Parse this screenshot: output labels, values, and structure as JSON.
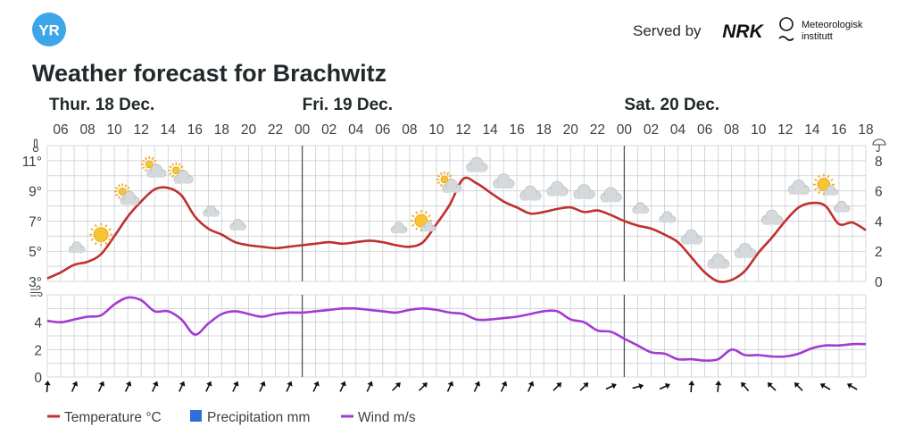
{
  "header": {
    "logo_text": "YR",
    "served_by": "Served by",
    "nrk_logo_text": "NRK",
    "met_line1": "Meteorologisk",
    "met_line2": "institutt",
    "title": "Weather forecast for Brachwitz"
  },
  "days": [
    {
      "label": "Thur. 18 Dec.",
      "hour": 5
    },
    {
      "label": "Fri. 19 Dec.",
      "hour": 24
    },
    {
      "label": "Sat. 20 Dec.",
      "hour": 48
    }
  ],
  "hour_labels": [
    "06",
    "08",
    "10",
    "12",
    "14",
    "16",
    "18",
    "20",
    "22",
    "00",
    "02",
    "04",
    "06",
    "08",
    "10",
    "12",
    "14",
    "16",
    "18",
    "20",
    "22",
    "00",
    "02",
    "04",
    "06",
    "08",
    "10",
    "12",
    "14",
    "16",
    "18"
  ],
  "legend": {
    "temperature": "Temperature °C",
    "precipitation": "Precipitation mm",
    "wind": "Wind m/s"
  },
  "colors": {
    "temperature": "#c0302d",
    "precipitation": "#2f6fd8",
    "wind": "#a23bd1",
    "grid": "#c9cdd0"
  },
  "chart_data": [
    {
      "type": "line",
      "name": "temperature-precipitation",
      "x_start_hour": 5,
      "x_end_hour": 66,
      "ylim_left": [
        3,
        12
      ],
      "left_ticks": [
        "3°",
        "5°",
        "7°",
        "9°",
        "11°"
      ],
      "ylim_right": [
        0,
        9
      ],
      "right_ticks": [
        "0",
        "2",
        "4",
        "6",
        "8"
      ],
      "series": [
        {
          "name": "Temperature °C",
          "x": [
            5,
            6,
            7,
            8,
            9,
            10,
            11,
            12,
            13,
            14,
            15,
            16,
            17,
            18,
            19,
            20,
            21,
            22,
            23,
            24,
            25,
            26,
            27,
            28,
            29,
            30,
            31,
            32,
            33,
            34,
            35,
            36,
            37,
            38,
            39,
            40,
            41,
            42,
            43,
            44,
            45,
            46,
            47,
            48,
            49,
            50,
            51,
            52,
            53,
            54,
            55,
            56,
            57,
            58,
            59,
            60,
            61,
            62,
            63,
            64,
            65,
            66
          ],
          "values": [
            3.2,
            3.6,
            4.1,
            4.3,
            4.8,
            6.0,
            7.3,
            8.3,
            9.1,
            9.2,
            8.7,
            7.3,
            6.5,
            6.1,
            5.6,
            5.4,
            5.3,
            5.2,
            5.3,
            5.4,
            5.5,
            5.6,
            5.5,
            5.6,
            5.7,
            5.6,
            5.4,
            5.3,
            5.6,
            6.8,
            8.1,
            9.8,
            9.5,
            8.9,
            8.3,
            7.9,
            7.5,
            7.6,
            7.8,
            7.9,
            7.6,
            7.7,
            7.4,
            7.0,
            6.7,
            6.5,
            6.1,
            5.6,
            4.6,
            3.6,
            3.0,
            3.1,
            3.7,
            4.9,
            5.9,
            7.0,
            7.9,
            8.2,
            8.0,
            6.8,
            6.9,
            6.4
          ]
        },
        {
          "name": "Precipitation mm",
          "values": []
        }
      ],
      "symbols": [
        {
          "hour": 7,
          "icon": "partly-cloudy-night-icon"
        },
        {
          "hour": 9,
          "icon": "sun-icon"
        },
        {
          "hour": 11,
          "icon": "partly-cloudy-day-icon"
        },
        {
          "hour": 13,
          "icon": "partly-cloudy-day-icon"
        },
        {
          "hour": 15,
          "icon": "partly-cloudy-day-icon"
        },
        {
          "hour": 17,
          "icon": "partly-cloudy-night-icon"
        },
        {
          "hour": 19,
          "icon": "partly-cloudy-night-icon"
        },
        {
          "hour": 21,
          "icon": "moon-icon"
        },
        {
          "hour": 23,
          "icon": "moon-icon"
        },
        {
          "hour": 25,
          "icon": "moon-icon"
        },
        {
          "hour": 27,
          "icon": "moon-icon"
        },
        {
          "hour": 29,
          "icon": "moon-icon"
        },
        {
          "hour": 31,
          "icon": "partly-cloudy-night-icon"
        },
        {
          "hour": 33,
          "icon": "sun-cloud-icon"
        },
        {
          "hour": 35,
          "icon": "partly-cloudy-day-icon"
        },
        {
          "hour": 37,
          "icon": "cloud-icon"
        },
        {
          "hour": 39,
          "icon": "cloud-icon"
        },
        {
          "hour": 41,
          "icon": "cloud-icon"
        },
        {
          "hour": 43,
          "icon": "cloud-icon"
        },
        {
          "hour": 45,
          "icon": "cloud-icon"
        },
        {
          "hour": 47,
          "icon": "cloud-icon"
        },
        {
          "hour": 49,
          "icon": "partly-cloudy-night-icon"
        },
        {
          "hour": 51,
          "icon": "partly-cloudy-night-icon"
        },
        {
          "hour": 53,
          "icon": "cloud-icon"
        },
        {
          "hour": 55,
          "icon": "cloud-icon"
        },
        {
          "hour": 57,
          "icon": "cloud-icon"
        },
        {
          "hour": 59,
          "icon": "cloud-icon"
        },
        {
          "hour": 61,
          "icon": "cloud-icon"
        },
        {
          "hour": 63,
          "icon": "sun-cloud-icon"
        },
        {
          "hour": 64,
          "icon": "partly-cloudy-night-icon"
        }
      ]
    },
    {
      "type": "line",
      "name": "wind",
      "x_start_hour": 5,
      "x_end_hour": 66,
      "ylim": [
        0,
        6
      ],
      "left_ticks": [
        "0",
        "2",
        "4"
      ],
      "series": [
        {
          "name": "Wind m/s",
          "x": [
            5,
            6,
            7,
            8,
            9,
            10,
            11,
            12,
            13,
            14,
            15,
            16,
            17,
            18,
            19,
            20,
            21,
            22,
            23,
            24,
            25,
            26,
            27,
            28,
            29,
            30,
            31,
            32,
            33,
            34,
            35,
            36,
            37,
            38,
            39,
            40,
            41,
            42,
            43,
            44,
            45,
            46,
            47,
            48,
            49,
            50,
            51,
            52,
            53,
            54,
            55,
            56,
            57,
            58,
            59,
            60,
            61,
            62,
            63,
            64,
            65,
            66
          ],
          "values": [
            4.1,
            4.0,
            4.2,
            4.4,
            4.5,
            5.3,
            5.8,
            5.6,
            4.8,
            4.8,
            4.2,
            3.1,
            3.9,
            4.6,
            4.8,
            4.6,
            4.4,
            4.6,
            4.7,
            4.7,
            4.8,
            4.9,
            5.0,
            5.0,
            4.9,
            4.8,
            4.7,
            4.9,
            5.0,
            4.9,
            4.7,
            4.6,
            4.2,
            4.2,
            4.3,
            4.4,
            4.6,
            4.8,
            4.8,
            4.2,
            4.0,
            3.4,
            3.3,
            2.8,
            2.3,
            1.8,
            1.7,
            1.3,
            1.3,
            1.2,
            1.3,
            2.0,
            1.6,
            1.6,
            1.5,
            1.5,
            1.7,
            2.1,
            2.3,
            2.3,
            2.4,
            2.4
          ]
        }
      ],
      "wind_directions_deg": [
        5,
        25,
        25,
        25,
        25,
        25,
        25,
        25,
        25,
        25,
        25,
        25,
        25,
        45,
        45,
        25,
        25,
        25,
        25,
        45,
        45,
        65,
        75,
        65,
        5,
        5,
        320,
        315,
        315,
        300,
        300
      ]
    }
  ]
}
